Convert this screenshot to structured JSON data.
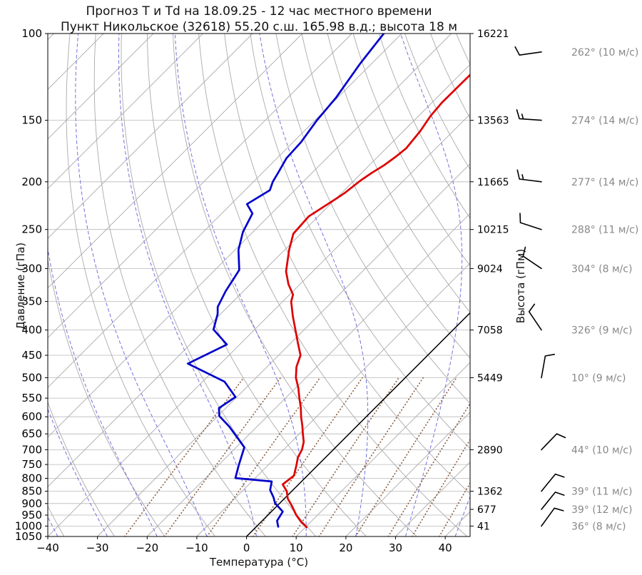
{
  "title": {
    "line1": "Прогноз Т и Td на 18.09.25 - 12 час местного времени",
    "line2": "Пункт Никольское (32618) 55.20 с.ш. 165.98 в.д.; высота 18 м"
  },
  "chart_data": {
    "type": "skewt_log_p",
    "xlabel": "Температура (°C)",
    "ylabel_left": "Давление (гПа)",
    "ylabel_right": "Высота (гПм)",
    "x_range_c": [
      -40,
      45
    ],
    "p_range_hpa": [
      100,
      1050
    ],
    "pressure_ticks": [
      100,
      150,
      200,
      250,
      300,
      350,
      400,
      450,
      500,
      550,
      600,
      650,
      700,
      750,
      800,
      850,
      900,
      950,
      1000,
      1050
    ],
    "temp_ticks": [
      -40,
      -30,
      -20,
      -10,
      0,
      10,
      20,
      30,
      40
    ],
    "height_labels": [
      {
        "p": 100,
        "h": "16221"
      },
      {
        "p": 150,
        "h": "13563"
      },
      {
        "p": 200,
        "h": "11665"
      },
      {
        "p": 250,
        "h": "10215"
      },
      {
        "p": 300,
        "h": "9024"
      },
      {
        "p": 400,
        "h": "7058"
      },
      {
        "p": 500,
        "h": "5449"
      },
      {
        "p": 700,
        "h": "2890"
      },
      {
        "p": 850,
        "h": "1362"
      },
      {
        "p": 925,
        "h": "677"
      },
      {
        "p": 1000,
        "h": "41"
      }
    ],
    "temperature_profile": [
      [
        121,
        -47.9
      ],
      [
        138,
        -48.0
      ],
      [
        147,
        -47.6
      ],
      [
        158,
        -46.6
      ],
      [
        171,
        -46.0
      ],
      [
        178,
        -46.4
      ],
      [
        185,
        -47.0
      ],
      [
        192,
        -48.0
      ],
      [
        199,
        -48.7
      ],
      [
        211,
        -49.4
      ],
      [
        217,
        -50.0
      ],
      [
        235,
        -51.9
      ],
      [
        255,
        -51.5
      ],
      [
        275,
        -49.1
      ],
      [
        304,
        -45.4
      ],
      [
        323,
        -42.3
      ],
      [
        339,
        -39.3
      ],
      [
        350,
        -38.3
      ],
      [
        375,
        -35.0
      ],
      [
        400,
        -31.7
      ],
      [
        425,
        -28.6
      ],
      [
        450,
        -25.6
      ],
      [
        475,
        -24.1
      ],
      [
        500,
        -22.0
      ],
      [
        525,
        -19.4
      ],
      [
        550,
        -17.2
      ],
      [
        575,
        -15.0
      ],
      [
        600,
        -13.1
      ],
      [
        625,
        -11.1
      ],
      [
        650,
        -9.3
      ],
      [
        675,
        -7.5
      ],
      [
        700,
        -6.3
      ],
      [
        725,
        -5.6
      ],
      [
        750,
        -4.4
      ],
      [
        790,
        -2.7
      ],
      [
        823,
        -3.2
      ],
      [
        850,
        -1.0
      ],
      [
        880,
        0.7
      ],
      [
        905,
        2.6
      ],
      [
        925,
        4.0
      ],
      [
        950,
        5.7
      ],
      [
        980,
        8.0
      ],
      [
        1005,
        10.2
      ]
    ],
    "dewpoint_profile": [
      [
        100,
        -73.6
      ],
      [
        115,
        -72.3
      ],
      [
        135,
        -70.3
      ],
      [
        150,
        -69.6
      ],
      [
        166,
        -68.4
      ],
      [
        179,
        -68.1
      ],
      [
        191,
        -66.9
      ],
      [
        200,
        -66.1
      ],
      [
        208,
        -65.0
      ],
      [
        222,
        -66.8
      ],
      [
        232,
        -63.8
      ],
      [
        253,
        -62.0
      ],
      [
        275,
        -59.3
      ],
      [
        302,
        -55.1
      ],
      [
        312,
        -54.6
      ],
      [
        333,
        -53.6
      ],
      [
        359,
        -52.0
      ],
      [
        371,
        -50.6
      ],
      [
        399,
        -48.3
      ],
      [
        428,
        -42.6
      ],
      [
        468,
        -46.6
      ],
      [
        509,
        -35.6
      ],
      [
        547,
        -30.3
      ],
      [
        576,
        -31.4
      ],
      [
        598,
        -29.7
      ],
      [
        628,
        -25.6
      ],
      [
        660,
        -21.9
      ],
      [
        692,
        -18.4
      ],
      [
        718,
        -17.3
      ],
      [
        755,
        -15.8
      ],
      [
        799,
        -14.0
      ],
      [
        812,
        -6.0
      ],
      [
        845,
        -4.6
      ],
      [
        875,
        -2.4
      ],
      [
        898,
        -1.0
      ],
      [
        935,
        2.3
      ],
      [
        976,
        3.0
      ],
      [
        1003,
        4.4
      ]
    ],
    "winds": [
      {
        "p": 109,
        "dir": 262,
        "speed": 10,
        "label": "262° (10 м/с)"
      },
      {
        "p": 150,
        "dir": 274,
        "speed": 14,
        "label": "274° (14 м/с)"
      },
      {
        "p": 200,
        "dir": 277,
        "speed": 14,
        "label": "277° (14 м/с)"
      },
      {
        "p": 250,
        "dir": 288,
        "speed": 11,
        "label": "288° (11 м/с)"
      },
      {
        "p": 300,
        "dir": 304,
        "speed": 8,
        "label": "304° (8 м/с)"
      },
      {
        "p": 400,
        "dir": 326,
        "speed": 9,
        "label": "326° (9 м/с)"
      },
      {
        "p": 500,
        "dir": 10,
        "speed": 9,
        "label": "10° (9 м/с)"
      },
      {
        "p": 700,
        "dir": 44,
        "speed": 10,
        "label": "44° (10 м/с)"
      },
      {
        "p": 850,
        "dir": 39,
        "speed": 11,
        "label": "39° (11 м/с)"
      },
      {
        "p": 925,
        "dir": 39,
        "speed": 12,
        "label": "39° (12 м/с)"
      },
      {
        "p": 1000,
        "dir": 36,
        "speed": 8,
        "label": "36° (8 м/с)"
      }
    ],
    "grid": {
      "isotherms_c": {
        "min": -140,
        "max": 40,
        "step": 10
      },
      "dry_adiabats_theta_c": {
        "min": -40,
        "max": 170,
        "step": 10
      },
      "moist_adiabat_starts_c": [
        -58,
        -48,
        -38,
        -28,
        -18,
        -8,
        2,
        12,
        22,
        32,
        42,
        52,
        62
      ],
      "mixing_ratios_gkg": [
        0.5,
        1,
        2,
        4,
        7,
        10,
        16,
        24,
        32,
        44
      ],
      "mixing_ratio_top_hpa": 500,
      "zero_isotherm_c": 0
    },
    "colors": {
      "temperature": "#dd0000",
      "dewpoint": "#0000cc",
      "isotherm": "#aaaaaa",
      "dry_adiabat": "#aaaaaa",
      "moist_adiabat": "#7272dd",
      "mixing_ratio": "#8b5f42",
      "zero_isotherm": "#000000",
      "pressure_grid": "#b8b8b8",
      "axis": "#000000",
      "wind_label": "#888888",
      "title": "#111111"
    }
  }
}
